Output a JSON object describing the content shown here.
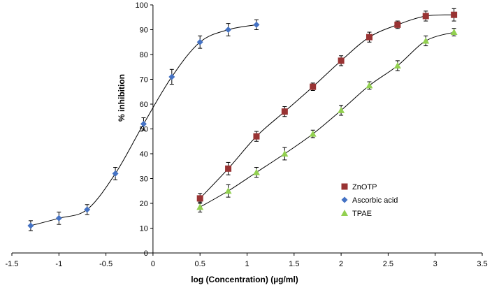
{
  "chart_data": {
    "type": "scatter",
    "xlabel": "log (Concentration) (µg/ml)",
    "ylabel": "% inhibition",
    "xlim": [
      -1.5,
      3.5
    ],
    "ylim": [
      0,
      100
    ],
    "xticks": [
      -1.5,
      -1,
      -0.5,
      0,
      0.5,
      1,
      1.5,
      2,
      2.5,
      3,
      3.5
    ],
    "xtick_labels": [
      "-1.5",
      "-1",
      "-0.5",
      "0",
      "0.5",
      "1",
      "1.5",
      "2",
      "2.5",
      "3",
      "3.5"
    ],
    "yticks": [
      0,
      10,
      20,
      30,
      40,
      50,
      60,
      70,
      80,
      90,
      100
    ],
    "ytick_labels": [
      "0",
      "10",
      "20",
      "30",
      "40",
      "50",
      "60",
      "70",
      "80",
      "90",
      "100"
    ],
    "grid": false,
    "legend_position": "right",
    "series": [
      {
        "name": "ZnOTP",
        "marker": "square",
        "color": "#993333",
        "points": [
          {
            "x": 0.5,
            "y": 22,
            "err": 2
          },
          {
            "x": 0.8,
            "y": 34,
            "err": 2.5
          },
          {
            "x": 1.1,
            "y": 47,
            "err": 2
          },
          {
            "x": 1.4,
            "y": 57,
            "err": 2
          },
          {
            "x": 1.7,
            "y": 67,
            "err": 1.5
          },
          {
            "x": 2.0,
            "y": 77.5,
            "err": 2
          },
          {
            "x": 2.3,
            "y": 87,
            "err": 2
          },
          {
            "x": 2.6,
            "y": 92,
            "err": 1.5
          },
          {
            "x": 2.9,
            "y": 95.5,
            "err": 2
          },
          {
            "x": 3.2,
            "y": 96,
            "err": 2.5
          }
        ]
      },
      {
        "name": "Ascorbic acid",
        "marker": "diamond",
        "color": "#4472C4",
        "points": [
          {
            "x": -1.3,
            "y": 11,
            "err": 2
          },
          {
            "x": -1.0,
            "y": 14,
            "err": 2.5
          },
          {
            "x": -0.7,
            "y": 17.5,
            "err": 2
          },
          {
            "x": -0.4,
            "y": 32,
            "err": 2.5
          },
          {
            "x": -0.1,
            "y": 52,
            "err": 2.5
          },
          {
            "x": 0.2,
            "y": 71,
            "err": 3
          },
          {
            "x": 0.5,
            "y": 85,
            "err": 2.5
          },
          {
            "x": 0.8,
            "y": 90,
            "err": 2.5
          },
          {
            "x": 1.1,
            "y": 92,
            "err": 2
          }
        ]
      },
      {
        "name": "TPAE",
        "marker": "triangle",
        "color": "#92D050",
        "points": [
          {
            "x": 0.5,
            "y": 18.5,
            "err": 2
          },
          {
            "x": 0.8,
            "y": 25,
            "err": 2.5
          },
          {
            "x": 1.1,
            "y": 32.5,
            "err": 2
          },
          {
            "x": 1.4,
            "y": 40,
            "err": 2.5
          },
          {
            "x": 1.7,
            "y": 48,
            "err": 1.5
          },
          {
            "x": 2.0,
            "y": 57.5,
            "err": 2
          },
          {
            "x": 2.3,
            "y": 67.5,
            "err": 1.5
          },
          {
            "x": 2.6,
            "y": 75.5,
            "err": 2
          },
          {
            "x": 2.9,
            "y": 85.5,
            "err": 2
          },
          {
            "x": 3.2,
            "y": 89,
            "err": 1.5
          }
        ]
      }
    ]
  }
}
